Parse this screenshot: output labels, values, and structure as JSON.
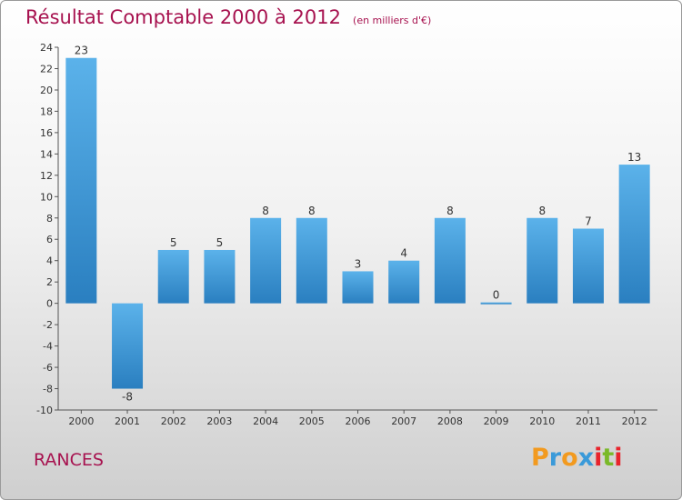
{
  "title": "Résultat Comptable 2000 à 2012",
  "unit": "(en milliers d'€)",
  "commune": "RANCES",
  "brand": {
    "letters": [
      "P",
      "r",
      "o",
      "x",
      "i",
      "t",
      "i"
    ],
    "colors": [
      "#f29a1f",
      "#3a9ad9",
      "#f29a1f",
      "#3a9ad9",
      "#e8242c",
      "#7ab929",
      "#e8242c"
    ]
  },
  "colors": {
    "accent": "#a7124f",
    "bar_top": "#5bb2ea",
    "bar_bottom": "#2a7fc0"
  },
  "chart_data": {
    "type": "bar",
    "title": "Résultat Comptable 2000 à 2012",
    "xlabel": "",
    "ylabel": "(en milliers d'€)",
    "categories": [
      "2000",
      "2001",
      "2002",
      "2003",
      "2004",
      "2005",
      "2006",
      "2007",
      "2008",
      "2009",
      "2010",
      "2011",
      "2012"
    ],
    "values": [
      23,
      -8,
      5,
      5,
      8,
      8,
      3,
      4,
      8,
      0,
      8,
      7,
      13
    ],
    "data_labels": [
      "23",
      "-8",
      "5",
      "5",
      "8",
      "8",
      "3",
      "4",
      "8",
      "0",
      "8",
      "7",
      "13"
    ],
    "ylim": [
      -10,
      24
    ],
    "yticks": [
      -10,
      -8,
      -6,
      -4,
      -2,
      0,
      2,
      4,
      6,
      8,
      10,
      12,
      14,
      16,
      18,
      20,
      22,
      24
    ],
    "grid": false
  }
}
